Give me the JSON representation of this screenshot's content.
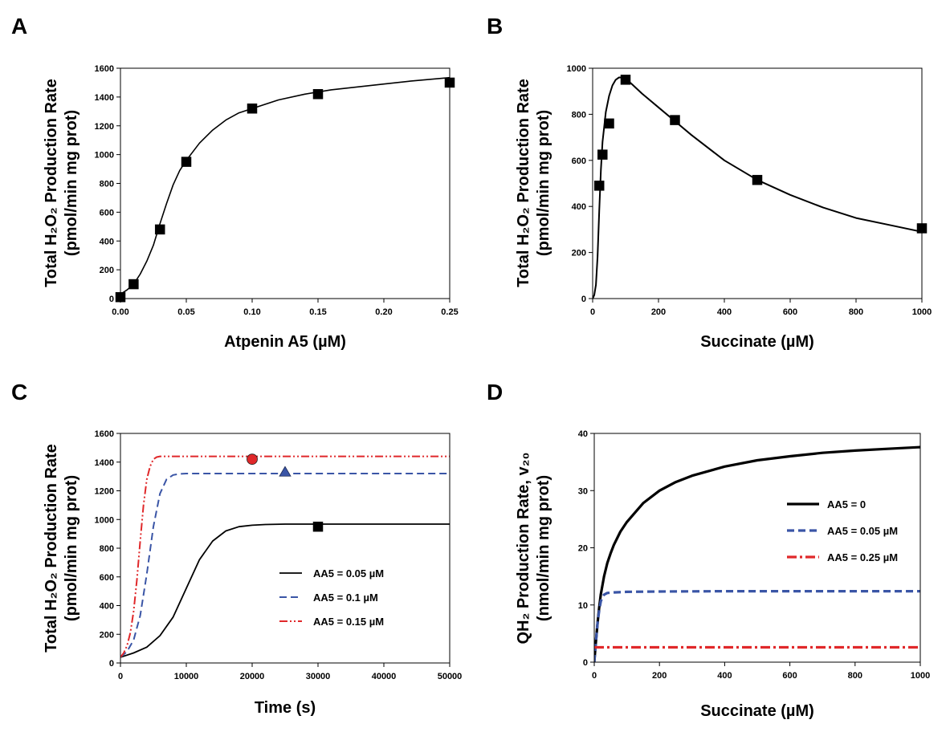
{
  "figure": {
    "panels": [
      {
        "id": "A",
        "label": "A"
      },
      {
        "id": "B",
        "label": "B"
      },
      {
        "id": "C",
        "label": "C"
      },
      {
        "id": "D",
        "label": "D"
      }
    ]
  },
  "colors": {
    "black": "#000000",
    "blue": "#3a55a6",
    "red": "#e0282a"
  },
  "chart_data": [
    {
      "id": "A",
      "type": "scatter",
      "title": "",
      "xlabel": "Atpenin A5 (µM)",
      "ylabel_line1": "Total H₂O₂ Production Rate",
      "ylabel_line2": "(pmol/min mg prot)",
      "xlim": [
        0,
        0.25
      ],
      "ylim": [
        0,
        1600
      ],
      "xticks": [
        0,
        0.05,
        0.1,
        0.15,
        0.2,
        0.25
      ],
      "xtick_labels": [
        "0.00",
        "0.05",
        "0.10",
        "0.15",
        "0.20",
        "0.25"
      ],
      "yticks": [
        0,
        200,
        400,
        600,
        800,
        1000,
        1200,
        1400,
        1600
      ],
      "ytick_labels": [
        "0",
        "200",
        "400",
        "600",
        "800",
        "1000",
        "1200",
        "1400",
        "1600"
      ],
      "points": {
        "marker": "square",
        "color": "#000000",
        "x": [
          0,
          0.01,
          0.03,
          0.05,
          0.1,
          0.15,
          0.25
        ],
        "y": [
          10,
          100,
          480,
          950,
          1320,
          1420,
          1500
        ]
      },
      "curve": {
        "color": "#000000",
        "style": "solid",
        "width": 1.6,
        "x": [
          0,
          0.005,
          0.01,
          0.015,
          0.02,
          0.025,
          0.03,
          0.035,
          0.04,
          0.045,
          0.05,
          0.06,
          0.07,
          0.08,
          0.09,
          0.1,
          0.12,
          0.14,
          0.16,
          0.18,
          0.2,
          0.22,
          0.25
        ],
        "y": [
          30,
          60,
          100,
          170,
          260,
          370,
          520,
          660,
          790,
          890,
          960,
          1080,
          1170,
          1240,
          1290,
          1320,
          1380,
          1420,
          1450,
          1470,
          1490,
          1510,
          1535
        ]
      }
    },
    {
      "id": "B",
      "type": "scatter",
      "title": "",
      "xlabel": "Succinate (µM)",
      "ylabel_line1": "Total H₂O₂ Production Rate",
      "ylabel_line2": "(pmol/min mg prot)",
      "xlim": [
        0,
        1000
      ],
      "ylim": [
        0,
        1000
      ],
      "xticks": [
        0,
        200,
        400,
        600,
        800,
        1000
      ],
      "xtick_labels": [
        "0",
        "200",
        "400",
        "600",
        "800",
        "1000"
      ],
      "yticks": [
        0,
        200,
        400,
        600,
        800,
        1000
      ],
      "ytick_labels": [
        "0",
        "200",
        "400",
        "600",
        "800",
        "1000"
      ],
      "points": {
        "marker": "square",
        "color": "#000000",
        "x": [
          20,
          30,
          50,
          100,
          250,
          500,
          1000
        ],
        "y": [
          490,
          625,
          760,
          950,
          775,
          515,
          305
        ]
      },
      "curve": {
        "color": "#000000",
        "style": "solid",
        "width": 2,
        "x": [
          0,
          5,
          10,
          15,
          20,
          25,
          30,
          40,
          50,
          60,
          70,
          80,
          90,
          100,
          120,
          150,
          200,
          250,
          300,
          400,
          500,
          600,
          700,
          800,
          900,
          1000
        ],
        "y": [
          0,
          15,
          60,
          180,
          380,
          560,
          680,
          810,
          880,
          925,
          950,
          960,
          960,
          955,
          930,
          890,
          830,
          770,
          710,
          600,
          515,
          450,
          395,
          350,
          320,
          290
        ]
      }
    },
    {
      "id": "C",
      "type": "line",
      "title": "",
      "xlabel": "Time (s)",
      "ylabel_line1": "Total H₂O₂ Production Rate",
      "ylabel_line2": "(pmol/min mg prot)",
      "xlim": [
        0,
        50000
      ],
      "ylim": [
        0,
        1600
      ],
      "xticks": [
        0,
        10000,
        20000,
        30000,
        40000,
        50000
      ],
      "xtick_labels": [
        "0",
        "10000",
        "20000",
        "30000",
        "40000",
        "50000"
      ],
      "yticks": [
        0,
        200,
        400,
        600,
        800,
        1000,
        1200,
        1400,
        1600
      ],
      "ytick_labels": [
        "0",
        "200",
        "400",
        "600",
        "800",
        "1000",
        "1200",
        "1400",
        "1600"
      ],
      "legend_position": "lower-right",
      "series": [
        {
          "name": "AA5 = 0.05 µM",
          "color": "#000000",
          "style": "solid",
          "width": 1.8,
          "x": [
            0,
            2000,
            4000,
            6000,
            8000,
            10000,
            12000,
            14000,
            16000,
            18000,
            20000,
            22000,
            25000,
            30000,
            40000,
            50000
          ],
          "y": [
            40,
            70,
            110,
            190,
            320,
            520,
            720,
            850,
            920,
            950,
            960,
            965,
            968,
            968,
            968,
            968
          ],
          "marker": {
            "shape": "square",
            "x": 30000,
            "y": 950
          }
        },
        {
          "name": "AA5 = 0.1 µM",
          "color": "#3a55a6",
          "style": "dashed",
          "width": 2,
          "x": [
            0,
            1000,
            2000,
            3000,
            4000,
            5000,
            6000,
            7000,
            8000,
            9000,
            10000,
            12000,
            20000,
            50000
          ],
          "y": [
            40,
            80,
            160,
            330,
            620,
            950,
            1180,
            1280,
            1310,
            1318,
            1320,
            1320,
            1320,
            1320
          ],
          "marker": {
            "shape": "triangle",
            "x": 25000,
            "y": 1330
          }
        },
        {
          "name": "AA5 = 0.15 µM",
          "color": "#e0282a",
          "style": "dashdotdot",
          "width": 2,
          "x": [
            0,
            500,
            1000,
            1500,
            2000,
            2500,
            3000,
            3500,
            4000,
            4500,
            5000,
            5500,
            6000,
            7000,
            10000,
            50000
          ],
          "y": [
            40,
            70,
            120,
            210,
            360,
            580,
            850,
            1100,
            1280,
            1370,
            1420,
            1435,
            1440,
            1440,
            1440,
            1440
          ],
          "marker": {
            "shape": "circle",
            "x": 20000,
            "y": 1420
          }
        }
      ]
    },
    {
      "id": "D",
      "type": "line",
      "title": "",
      "xlabel": "Succinate (µM)",
      "ylabel_line1": "QH₂ Production Rate, v₂₀",
      "ylabel_line2": "(nmol/min mg prot)",
      "xlim": [
        0,
        1000
      ],
      "ylim": [
        0,
        40
      ],
      "xticks": [
        0,
        200,
        400,
        600,
        800,
        1000
      ],
      "xtick_labels": [
        "0",
        "200",
        "400",
        "600",
        "800",
        "1000"
      ],
      "yticks": [
        0,
        10,
        20,
        30,
        40
      ],
      "ytick_labels": [
        "0",
        "10",
        "20",
        "30",
        "40"
      ],
      "legend_position": "center-right",
      "series": [
        {
          "name": "AA5 = 0",
          "color": "#000000",
          "style": "solid",
          "width": 3.2,
          "x": [
            0,
            5,
            10,
            15,
            20,
            30,
            40,
            50,
            60,
            80,
            100,
            150,
            200,
            250,
            300,
            400,
            500,
            600,
            700,
            800,
            900,
            1000
          ],
          "y": [
            0,
            3.5,
            6.8,
            9.5,
            11.8,
            15.0,
            17.3,
            19.0,
            20.5,
            22.8,
            24.5,
            27.8,
            30.0,
            31.5,
            32.6,
            34.2,
            35.3,
            36.0,
            36.6,
            37.0,
            37.3,
            37.6
          ]
        },
        {
          "name": "AA5 = 0.05 µM",
          "color": "#3a55a6",
          "style": "dashed",
          "width": 3.2,
          "x": [
            0,
            5,
            10,
            15,
            20,
            25,
            30,
            40,
            60,
            100,
            200,
            400,
            700,
            1000
          ],
          "y": [
            0,
            3.5,
            6.8,
            9.0,
            10.6,
            11.4,
            11.8,
            12.1,
            12.2,
            12.3,
            12.35,
            12.4,
            12.4,
            12.4
          ]
        },
        {
          "name": "AA5 = 0.25 µM",
          "color": "#e0282a",
          "style": "dashdot",
          "width": 3.2,
          "x": [
            0,
            1000
          ],
          "y": [
            2.6,
            2.6
          ]
        }
      ]
    }
  ]
}
